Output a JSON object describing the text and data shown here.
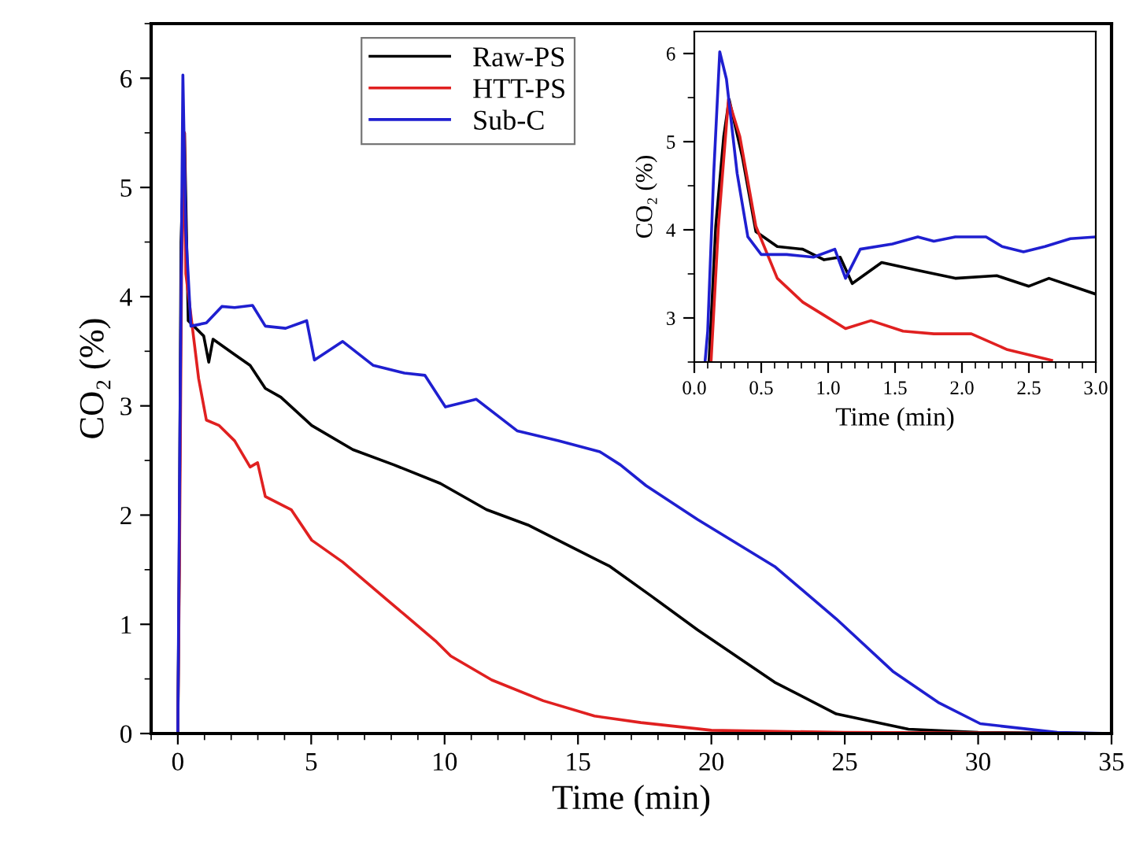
{
  "chart_data": [
    {
      "type": "line",
      "xlabel": "Time (min)",
      "ylabel": "CO₂ (%)",
      "xlim": [
        -1,
        35
      ],
      "ylim": [
        0,
        6.5
      ],
      "xticks": [
        0,
        5,
        10,
        15,
        20,
        25,
        30,
        35
      ],
      "yticks": [
        0,
        1,
        2,
        3,
        4,
        5,
        6
      ],
      "legend": "top",
      "grid": false,
      "marker": "none",
      "line_style": "solid",
      "series": [
        {
          "name": "Raw-PS",
          "color": "#000000",
          "x": [
            0,
            0.05,
            0.12,
            0.25,
            0.39,
            0.97,
            1.16,
            1.32,
            2.13,
            2.71,
            3.28,
            3.86,
            5.02,
            6.56,
            8.1,
            9.84,
            11.57,
            13.12,
            14.66,
            16.2,
            17.74,
            19.48,
            22.37,
            24.68,
            27.39,
            30,
            35
          ],
          "values": [
            0,
            1.5,
            4.5,
            5.5,
            3.78,
            3.64,
            3.4,
            3.61,
            3.47,
            3.37,
            3.16,
            3.08,
            2.82,
            2.6,
            2.46,
            2.29,
            2.05,
            1.91,
            1.72,
            1.53,
            1.26,
            0.95,
            0.47,
            0.18,
            0.04,
            0.01,
            0
          ]
        },
        {
          "name": "HTT-PS",
          "color": "#e02020",
          "x": [
            0,
            0.06,
            0.14,
            0.25,
            0.3,
            0.78,
            1.07,
            1.55,
            2.13,
            2.71,
            2.99,
            3.28,
            4.25,
            5.02,
            6.18,
            7.33,
            8.49,
            9.65,
            10.23,
            11.77,
            13.7,
            15.62,
            17.36,
            20,
            25,
            35
          ],
          "values": [
            0,
            1.5,
            4.2,
            5.5,
            4.21,
            3.25,
            2.87,
            2.82,
            2.68,
            2.44,
            2.48,
            2.17,
            2.05,
            1.77,
            1.57,
            1.33,
            1.09,
            0.85,
            0.71,
            0.49,
            0.3,
            0.16,
            0.1,
            0.03,
            0.01,
            0
          ]
        },
        {
          "name": "Sub-C",
          "color": "#1f1fd0",
          "x": [
            0,
            0.08,
            0.19,
            0.3,
            0.49,
            1.07,
            1.65,
            2.13,
            2.8,
            3.28,
            4.04,
            4.83,
            5.12,
            6.18,
            7.33,
            8.49,
            9.26,
            10.03,
            11.19,
            12.73,
            14.27,
            15.82,
            16.59,
            17.55,
            19.48,
            22.37,
            24.68,
            26.8,
            28.54,
            30.08,
            32.97,
            35
          ],
          "values": [
            0,
            2.8,
            6.03,
            4.6,
            3.73,
            3.76,
            3.91,
            3.9,
            3.92,
            3.73,
            3.71,
            3.78,
            3.42,
            3.59,
            3.37,
            3.3,
            3.28,
            2.99,
            3.06,
            2.77,
            2.68,
            2.58,
            2.46,
            2.27,
            1.96,
            1.53,
            1.05,
            0.57,
            0.28,
            0.09,
            0.01,
            0
          ]
        }
      ]
    },
    {
      "type": "line",
      "xlabel": "Time (min)",
      "ylabel": "CO₂ (%)",
      "xlim": [
        0,
        3
      ],
      "ylim": [
        2.5,
        6.25
      ],
      "xticks": [
        {
          "value": 0,
          "label": "0.0"
        },
        {
          "value": 0.5,
          "label": "0.5"
        },
        {
          "value": 1,
          "label": "1.0"
        },
        {
          "value": 1.5,
          "label": "1.5"
        },
        {
          "value": 2,
          "label": "2.0"
        },
        {
          "value": 2.5,
          "label": "2.5"
        },
        {
          "value": 3,
          "label": "3.0"
        }
      ],
      "yticks": [
        3,
        4,
        5,
        6
      ],
      "legend": false,
      "grid": false,
      "marker": "none",
      "line_style": "solid",
      "series": [
        {
          "color": "#000000",
          "x": [
            0.11,
            0.16,
            0.22,
            0.26,
            0.36,
            0.46,
            0.62,
            0.81,
            0.97,
            1.09,
            1.18,
            1.4,
            1.67,
            1.95,
            2.26,
            2.5,
            2.65,
            3.0
          ],
          "values": [
            2.5,
            4.04,
            5.06,
            5.48,
            4.82,
            3.98,
            3.81,
            3.78,
            3.66,
            3.69,
            3.39,
            3.63,
            3.54,
            3.45,
            3.48,
            3.36,
            3.45,
            3.27
          ]
        },
        {
          "color": "#e02020",
          "x": [
            0.125,
            0.18,
            0.255,
            0.34,
            0.46,
            0.62,
            0.81,
            0.97,
            1.13,
            1.32,
            1.56,
            1.79,
            2.07,
            2.34,
            2.67
          ],
          "values": [
            2.5,
            4.04,
            5.48,
            5.06,
            4.04,
            3.45,
            3.18,
            3.03,
            2.88,
            2.97,
            2.85,
            2.82,
            2.82,
            2.64,
            2.52
          ]
        },
        {
          "color": "#1f1fd0",
          "x": [
            0.08,
            0.1,
            0.145,
            0.19,
            0.24,
            0.32,
            0.4,
            0.5,
            0.69,
            0.89,
            1.05,
            1.13,
            1.24,
            1.48,
            1.67,
            1.79,
            1.95,
            2.18,
            2.3,
            2.46,
            2.62,
            2.81,
            3.0
          ],
          "values": [
            2.5,
            2.85,
            4.64,
            6.02,
            5.71,
            4.64,
            3.92,
            3.72,
            3.72,
            3.69,
            3.78,
            3.45,
            3.78,
            3.84,
            3.92,
            3.87,
            3.92,
            3.92,
            3.81,
            3.75,
            3.81,
            3.9,
            3.92
          ]
        }
      ]
    }
  ]
}
